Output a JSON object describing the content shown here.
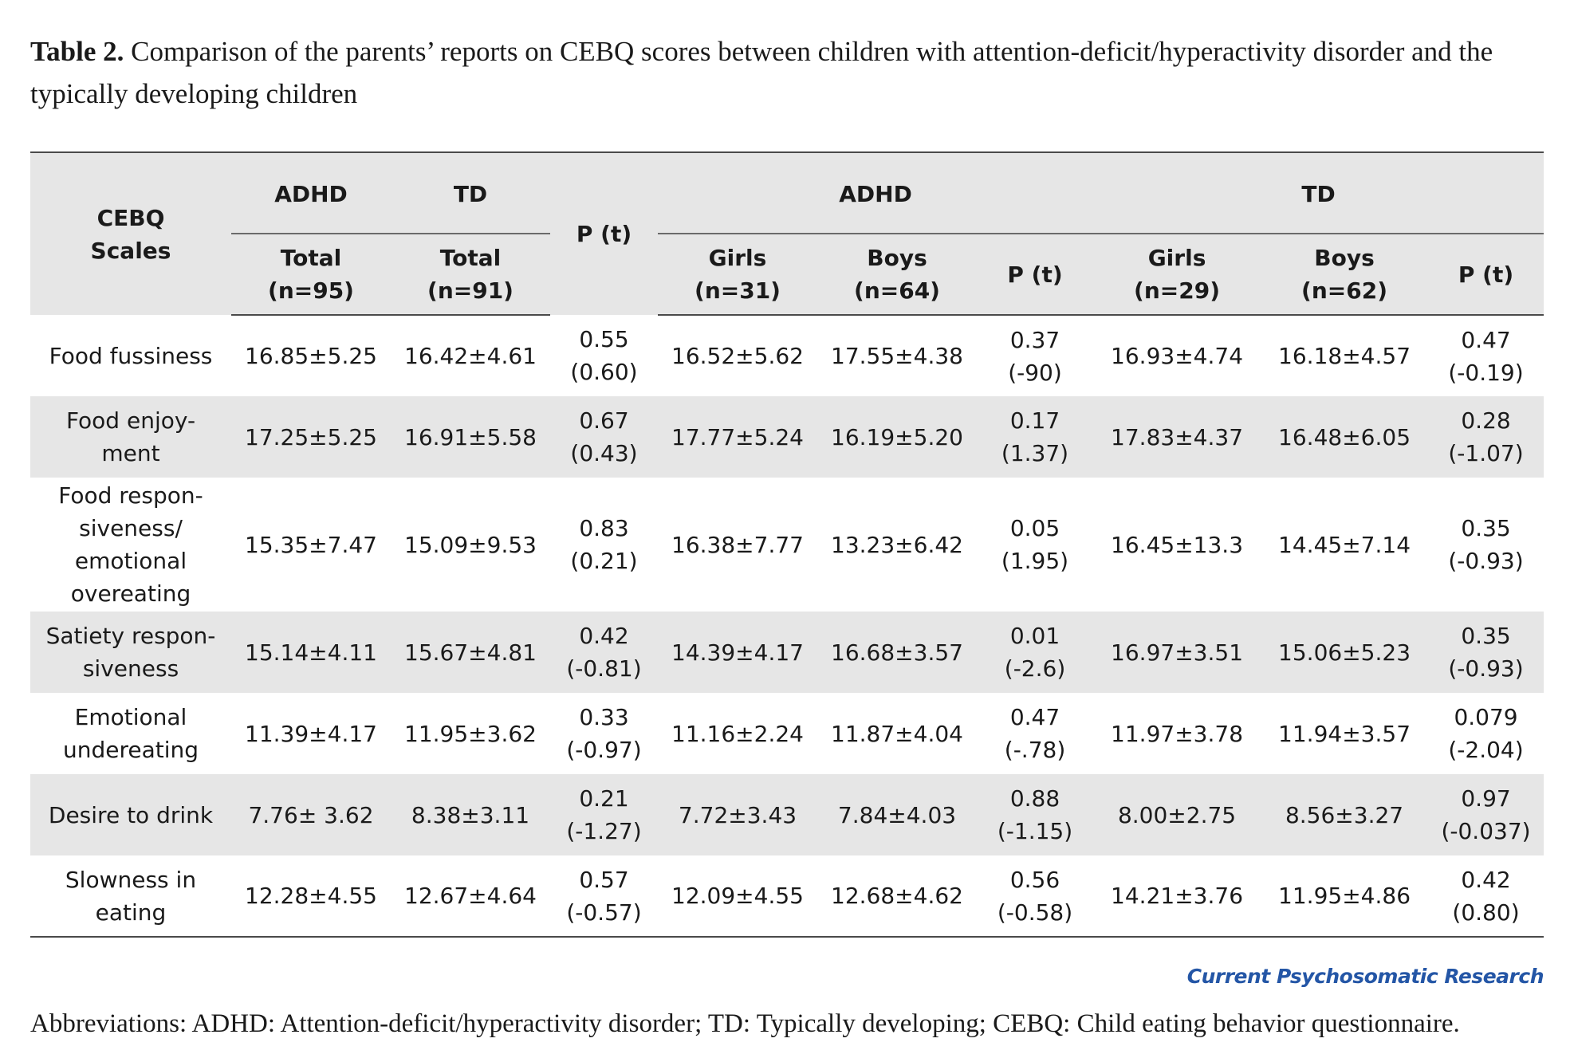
{
  "caption": {
    "label": "Table 2.",
    "text": " Comparison of the parents’ reports on CEBQ scores between children with attention-deficit/hyperactivity disorder and the typically developing children"
  },
  "table": {
    "header": {
      "scales_label": [
        "CEBQ",
        "Scales"
      ],
      "adhd_total_group": "ADHD",
      "td_total_group": "TD",
      "p_overall": "P (t)",
      "adhd_gender_group": "ADHD",
      "td_gender_group": "TD",
      "adhd_total": [
        "Total",
        "(n=95)"
      ],
      "td_total": [
        "Total",
        "(n=91)"
      ],
      "adhd_girls": [
        "Girls",
        "(n=31)"
      ],
      "adhd_boys": [
        "Boys",
        "(n=64)"
      ],
      "p_adhd": "P (t)",
      "td_girls": [
        "Girls",
        "(n=29)"
      ],
      "td_boys": [
        "Boys",
        "(n=62)"
      ],
      "p_td": "P (t)"
    },
    "rows": [
      {
        "scale": [
          "Food fussiness"
        ],
        "adhd_total": "16.85±5.25",
        "td_total": "16.42±4.61",
        "p_total": [
          "0.55",
          "(0.60)"
        ],
        "adhd_girls": "16.52±5.62",
        "adhd_boys": "17.55±4.38",
        "p_adhd": [
          "0.37",
          "(-90)"
        ],
        "td_girls": "16.93±4.74",
        "td_boys": "16.18±4.57",
        "p_td": [
          "0.47",
          "(-0.19)"
        ]
      },
      {
        "scale": [
          "Food enjoy-",
          "ment"
        ],
        "adhd_total": "17.25±5.25",
        "td_total": "16.91±5.58",
        "p_total": [
          "0.67",
          "(0.43)"
        ],
        "adhd_girls": "17.77±5.24",
        "adhd_boys": "16.19±5.20",
        "p_adhd": [
          "0.17",
          "(1.37)"
        ],
        "td_girls": "17.83±4.37",
        "td_boys": "16.48±6.05",
        "p_td": [
          "0.28",
          "(-1.07)"
        ]
      },
      {
        "scale": [
          "Food respon-",
          "siveness/",
          "emotional",
          "overeating"
        ],
        "adhd_total": "15.35±7.47",
        "td_total": "15.09±9.53",
        "p_total": [
          "0.83",
          "(0.21)"
        ],
        "adhd_girls": "16.38±7.77",
        "adhd_boys": "13.23±6.42",
        "p_adhd": [
          "0.05",
          "(1.95)"
        ],
        "td_girls": "16.45±13.3",
        "td_boys": "14.45±7.14",
        "p_td": [
          "0.35",
          "(-0.93)"
        ]
      },
      {
        "scale": [
          "Satiety respon-",
          "siveness"
        ],
        "adhd_total": "15.14±4.11",
        "td_total": "15.67±4.81",
        "p_total": [
          "0.42",
          "(-0.81)"
        ],
        "adhd_girls": "14.39±4.17",
        "adhd_boys": "16.68±3.57",
        "p_adhd": [
          "0.01",
          "(-2.6)"
        ],
        "td_girls": "16.97±3.51",
        "td_boys": "15.06±5.23",
        "p_td": [
          "0.35",
          "(-0.93)"
        ]
      },
      {
        "scale": [
          "Emotional",
          "undereating"
        ],
        "adhd_total": "11.39±4.17",
        "td_total": "11.95±3.62",
        "p_total": [
          "0.33",
          "(-0.97)"
        ],
        "adhd_girls": "11.16±2.24",
        "adhd_boys": "11.87±4.04",
        "p_adhd": [
          "0.47",
          "(-.78)"
        ],
        "td_girls": "11.97±3.78",
        "td_boys": "11.94±3.57",
        "p_td": [
          "0.079",
          "(-2.04)"
        ]
      },
      {
        "scale": [
          "Desire to drink"
        ],
        "adhd_total": "7.76± 3.62",
        "td_total": "8.38±3.11",
        "p_total": [
          "0.21",
          "(-1.27)"
        ],
        "adhd_girls": "7.72±3.43",
        "adhd_boys": "7.84±4.03",
        "p_adhd": [
          "0.88",
          "(-1.15)"
        ],
        "td_girls": "8.00±2.75",
        "td_boys": "8.56±3.27",
        "p_td": [
          "0.97",
          "(-0.037)"
        ]
      },
      {
        "scale": [
          "Slowness in",
          "eating"
        ],
        "adhd_total": "12.28±4.55",
        "td_total": "12.67±4.64",
        "p_total": [
          "0.57",
          "(-0.57)"
        ],
        "adhd_girls": "12.09±4.55",
        "adhd_boys": "12.68±4.62",
        "p_adhd": [
          "0.56",
          "(-0.58)"
        ],
        "td_girls": "14.21±3.76",
        "td_boys": "11.95±4.86",
        "p_td": [
          "0.42",
          "(0.80)"
        ]
      }
    ]
  },
  "brand": "Current Psychosomatic Research",
  "abbreviations": "Abbreviations: ADHD: Attention-deficit/hyperactivity disorder; TD: Typically developing; CEBQ: Child eating behavior questionnaire."
}
